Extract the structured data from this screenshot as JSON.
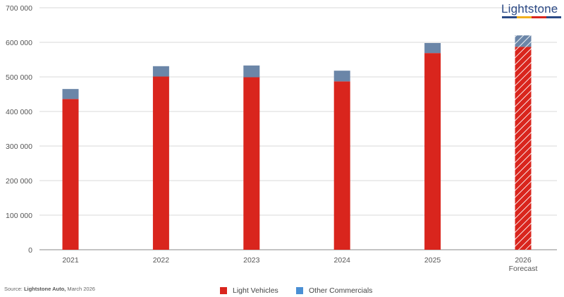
{
  "brand": {
    "name": "Lightstone",
    "underline_colors": [
      "#2c4a86",
      "#f2b01e",
      "#d9251d",
      "#2c4a86"
    ]
  },
  "source": {
    "prefix": "Source: ",
    "org": "Lightstone Auto,",
    "date": " March 2026"
  },
  "colors": {
    "light_vehicles": "#d9251d",
    "other_commercials": "#6b86a8",
    "legend_other_commercials": "#4a8fd4",
    "grid": "#d9d9d9",
    "axis": "#8a8a8a"
  },
  "chart_data": {
    "type": "bar",
    "stacked": true,
    "categories": [
      "2021",
      "2022",
      "2023",
      "2024",
      "2025",
      "2026"
    ],
    "category_sublabels": [
      "",
      "",
      "",
      "",
      "",
      "Forecast"
    ],
    "forecast_index": 5,
    "series": [
      {
        "name": "Light Vehicles",
        "values": [
          436000,
          501000,
          499000,
          487000,
          569000,
          587000
        ]
      },
      {
        "name": "Other Commercials",
        "values": [
          29000,
          30000,
          34000,
          31000,
          29000,
          33000
        ]
      }
    ],
    "ylim": [
      0,
      700000
    ],
    "yticks": [
      0,
      100000,
      200000,
      300000,
      400000,
      500000,
      600000,
      700000
    ],
    "ytick_labels": [
      "0",
      "100 000",
      "200 000",
      "300 000",
      "400 000",
      "500 000",
      "600 000",
      "700 000"
    ],
    "grid": true,
    "legend_position": "bottom-center",
    "title": "",
    "xlabel": "",
    "ylabel": ""
  }
}
